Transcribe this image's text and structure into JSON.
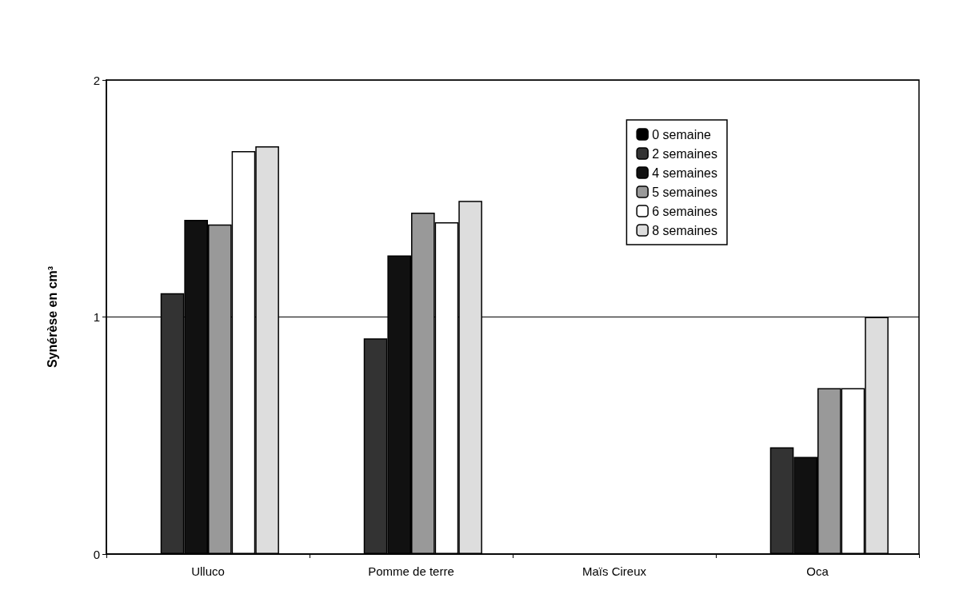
{
  "chart_data": {
    "type": "bar",
    "ylabel": "Synérèse en cm³",
    "categories": [
      "Ulluco",
      "Pomme de terre",
      "Maïs Cireux",
      "Oca"
    ],
    "series": [
      {
        "name": "0 semaine",
        "color": "#000000",
        "values": [
          0,
          0,
          0,
          0
        ]
      },
      {
        "name": "2 semaines",
        "color": "#333333",
        "values": [
          1.1,
          0.91,
          0,
          0.45
        ]
      },
      {
        "name": "4 semaines",
        "color": "#111111",
        "values": [
          1.41,
          1.26,
          0,
          0.41
        ]
      },
      {
        "name": "5 semaines",
        "color": "#999999",
        "values": [
          1.39,
          1.44,
          0,
          0.7
        ]
      },
      {
        "name": "6 semaines",
        "color": "#ffffff",
        "values": [
          1.7,
          1.4,
          0,
          0.7
        ]
      },
      {
        "name": "8 semaines",
        "color": "#dddddd",
        "values": [
          1.72,
          1.49,
          0,
          1.0
        ]
      }
    ],
    "ylim": [
      0,
      2
    ],
    "yticks": [
      0,
      1,
      2
    ],
    "grid": "y",
    "legend": "top right"
  }
}
